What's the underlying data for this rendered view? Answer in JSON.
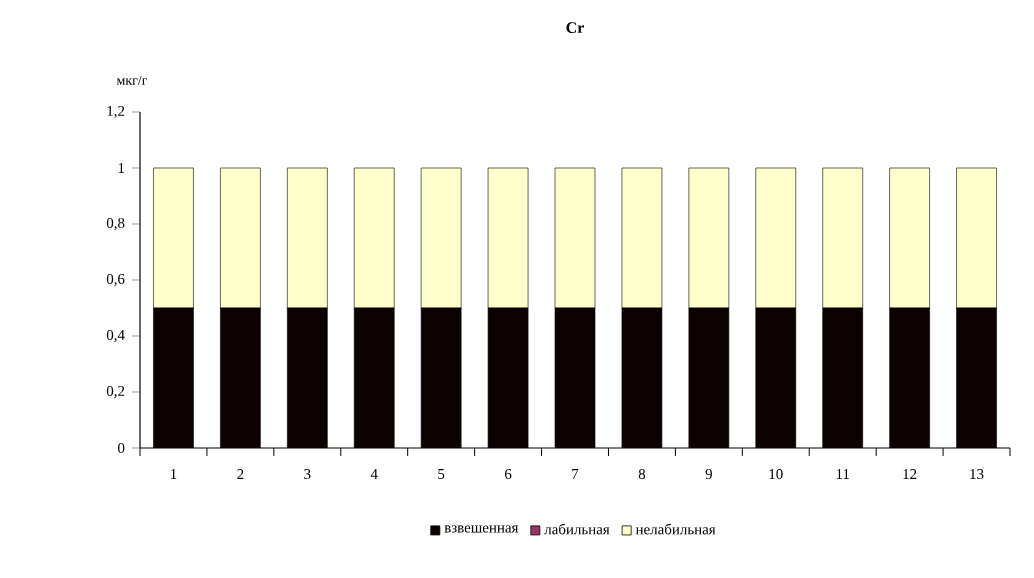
{
  "chart_data": {
    "type": "bar",
    "title": "Cr",
    "ylabel": "мкг/г",
    "stacked": true,
    "legend": "bottom",
    "grid": false,
    "categories": [
      "1",
      "2",
      "3",
      "4",
      "5",
      "6",
      "7",
      "8",
      "9",
      "10",
      "11",
      "12",
      "13"
    ],
    "series": [
      {
        "name": "взвешенная",
        "color": "#0c0000",
        "values": [
          0.5,
          0.5,
          0.5,
          0.5,
          0.5,
          0.5,
          0.5,
          0.5,
          0.5,
          0.5,
          0.5,
          0.5,
          0.5
        ]
      },
      {
        "name": "лабильная",
        "color": "#993366",
        "values": [
          0,
          0,
          0,
          0,
          0,
          0,
          0,
          0,
          0,
          0,
          0,
          0,
          0
        ]
      },
      {
        "name": "нелабильная",
        "color": "#ffffcc",
        "values": [
          0.5,
          0.5,
          0.5,
          0.5,
          0.5,
          0.5,
          0.5,
          0.5,
          0.5,
          0.5,
          0.5,
          0.5,
          0.5
        ]
      }
    ],
    "ylim": [
      0,
      1.2
    ],
    "yticks": [
      0,
      {
        "value": 0.2,
        "label": "0,2"
      },
      {
        "value": 0.4,
        "label": "0,4"
      },
      {
        "value": 0.6,
        "label": "0,6"
      },
      {
        "value": 0.8,
        "label": "0,8"
      },
      1,
      {
        "value": 1.2,
        "label": "1,2"
      }
    ]
  }
}
